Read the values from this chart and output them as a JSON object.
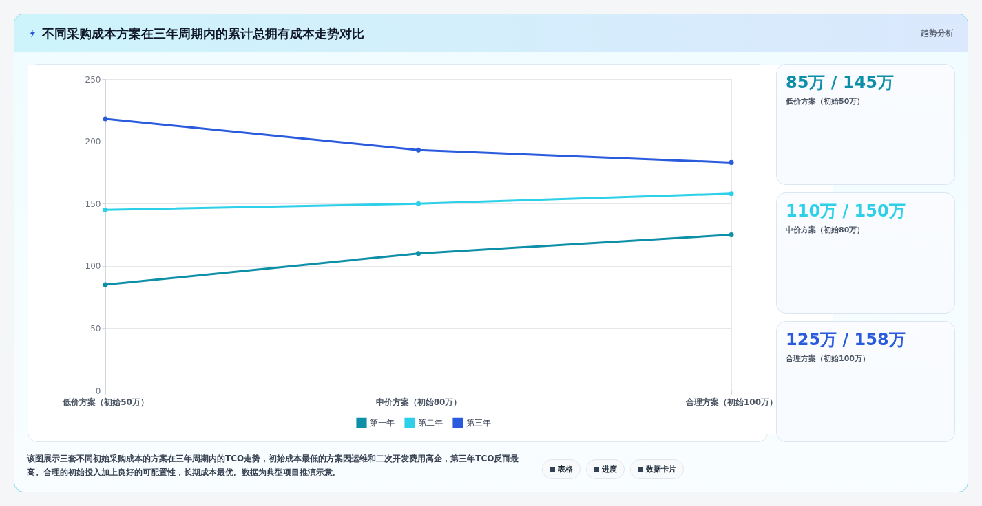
{
  "chart_data": [
    {
      "type": "line",
      "title": "不同采购成本方案在三年周期内的累计总拥有成本走势对比",
      "categories": [
        "低价方案（初始50万）",
        "中价方案（初始80万）",
        "合理方案（初始100万）"
      ],
      "series": [
        {
          "name": "第一年",
          "color": "#0e8fa8",
          "values": [
            85,
            110,
            125
          ]
        },
        {
          "name": "第二年",
          "color": "#2dd0e8",
          "values": [
            145,
            150,
            158
          ]
        },
        {
          "name": "第三年",
          "color": "#2a5bdc",
          "values": [
            218,
            193,
            183
          ]
        }
      ],
      "ylim": [
        0,
        250
      ],
      "yticks": [
        0,
        50,
        100,
        150,
        200,
        250
      ],
      "grid": true,
      "legend": "bottom",
      "marker": "circle",
      "line_style": "solid",
      "annotations": [
        "趋势分析",
        "该图展示三套不同初始采购成本的方案在三年周期内的TCO走势，初始成本最低的方案因运维和二次开发费用高企，第三年TCO反而最高。合理的初始投入加上良好的可配置性，长期成本最优。数据为典型项目推演示意。",
        "表格",
        "进度",
        "数据卡片"
      ]
    },
    {
      "type": "other",
      "title": "85万 / 145万",
      "subtitle": "低价方案（初始50万）"
    },
    {
      "type": "other",
      "title": "110万 / 150万",
      "subtitle": "中价方案（初始80万）"
    },
    {
      "type": "other",
      "title": "125万 / 158万",
      "subtitle": "合理方案（初始100万）"
    }
  ]
}
